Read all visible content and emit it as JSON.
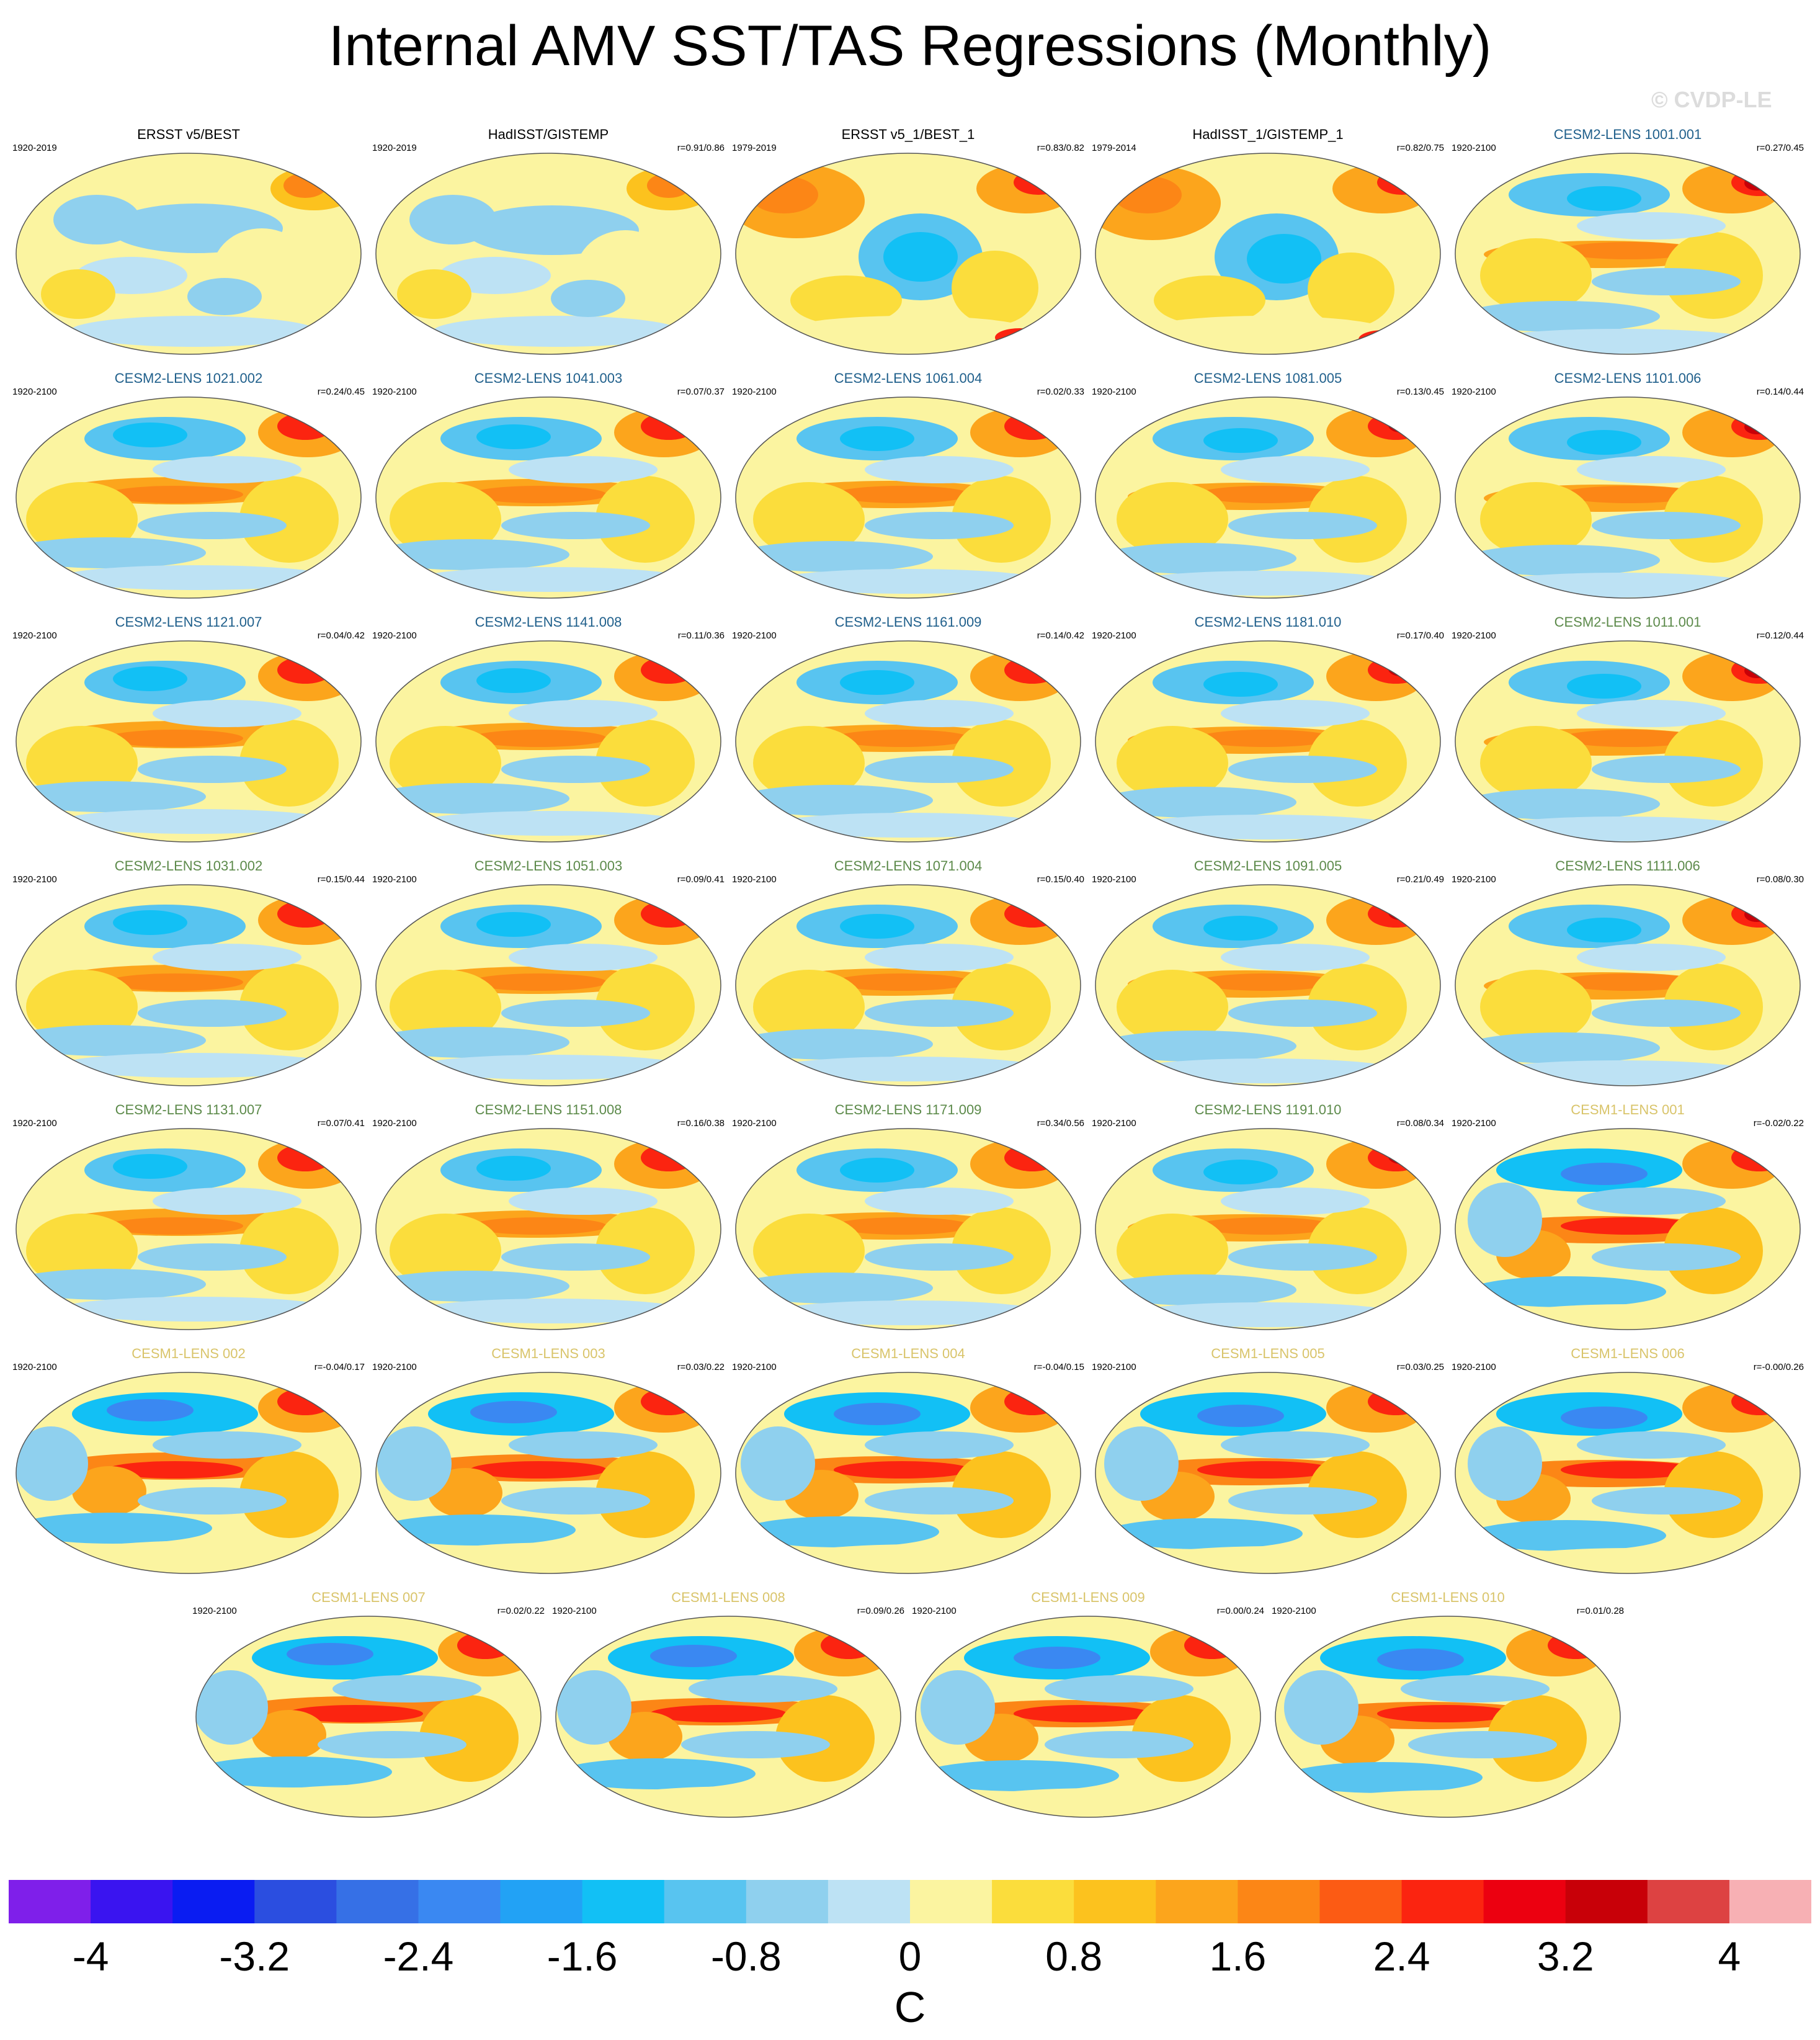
{
  "title": "Internal AMV SST/TAS Regressions (Monthly)",
  "watermark": "© CVDP-LE",
  "colors": {
    "obs_name": "#000000",
    "cesm2_a": "#1f5f8b",
    "cesm2_b": "#5c8a4a",
    "cesm1": "#d9c46a"
  },
  "panels": [
    {
      "name": "ERSST v5/BEST",
      "period": "1920-2019",
      "corr": "",
      "group": "obs",
      "pattern": 0
    },
    {
      "name": "HadISST/GISTEMP",
      "period": "1920-2019",
      "corr": "r=0.91/0.86",
      "group": "obs",
      "pattern": 0
    },
    {
      "name": "ERSST v5_1/BEST_1",
      "period": "1979-2019",
      "corr": "r=0.83/0.82",
      "group": "obs",
      "pattern": 1
    },
    {
      "name": "HadISST_1/GISTEMP_1",
      "period": "1979-2014",
      "corr": "r=0.82/0.75",
      "group": "obs",
      "pattern": 1
    },
    {
      "name": "CESM2-LENS 1001.001",
      "period": "1920-2100",
      "corr": "r=0.27/0.45",
      "group": "cesm2_a",
      "pattern": 2
    },
    {
      "name": "CESM2-LENS 1021.002",
      "period": "1920-2100",
      "corr": "r=0.24/0.45",
      "group": "cesm2_a",
      "pattern": 2
    },
    {
      "name": "CESM2-LENS 1041.003",
      "period": "1920-2100",
      "corr": "r=0.07/0.37",
      "group": "cesm2_a",
      "pattern": 2
    },
    {
      "name": "CESM2-LENS 1061.004",
      "period": "1920-2100",
      "corr": "r=0.02/0.33",
      "group": "cesm2_a",
      "pattern": 2
    },
    {
      "name": "CESM2-LENS 1081.005",
      "period": "1920-2100",
      "corr": "r=0.13/0.45",
      "group": "cesm2_a",
      "pattern": 2
    },
    {
      "name": "CESM2-LENS 1101.006",
      "period": "1920-2100",
      "corr": "r=0.14/0.44",
      "group": "cesm2_a",
      "pattern": 2
    },
    {
      "name": "CESM2-LENS 1121.007",
      "period": "1920-2100",
      "corr": "r=0.04/0.42",
      "group": "cesm2_a",
      "pattern": 2
    },
    {
      "name": "CESM2-LENS 1141.008",
      "period": "1920-2100",
      "corr": "r=0.11/0.36",
      "group": "cesm2_a",
      "pattern": 2
    },
    {
      "name": "CESM2-LENS 1161.009",
      "period": "1920-2100",
      "corr": "r=0.14/0.42",
      "group": "cesm2_a",
      "pattern": 2
    },
    {
      "name": "CESM2-LENS 1181.010",
      "period": "1920-2100",
      "corr": "r=0.17/0.40",
      "group": "cesm2_a",
      "pattern": 2
    },
    {
      "name": "CESM2-LENS 1011.001",
      "period": "1920-2100",
      "corr": "r=0.12/0.44",
      "group": "cesm2_b",
      "pattern": 2
    },
    {
      "name": "CESM2-LENS 1031.002",
      "period": "1920-2100",
      "corr": "r=0.15/0.44",
      "group": "cesm2_b",
      "pattern": 2
    },
    {
      "name": "CESM2-LENS 1051.003",
      "period": "1920-2100",
      "corr": "r=0.09/0.41",
      "group": "cesm2_b",
      "pattern": 2
    },
    {
      "name": "CESM2-LENS 1071.004",
      "period": "1920-2100",
      "corr": "r=0.15/0.40",
      "group": "cesm2_b",
      "pattern": 2
    },
    {
      "name": "CESM2-LENS 1091.005",
      "period": "1920-2100",
      "corr": "r=0.21/0.49",
      "group": "cesm2_b",
      "pattern": 2
    },
    {
      "name": "CESM2-LENS 1111.006",
      "period": "1920-2100",
      "corr": "r=0.08/0.30",
      "group": "cesm2_b",
      "pattern": 2
    },
    {
      "name": "CESM2-LENS 1131.007",
      "period": "1920-2100",
      "corr": "r=0.07/0.41",
      "group": "cesm2_b",
      "pattern": 2
    },
    {
      "name": "CESM2-LENS 1151.008",
      "period": "1920-2100",
      "corr": "r=0.16/0.38",
      "group": "cesm2_b",
      "pattern": 2
    },
    {
      "name": "CESM2-LENS 1171.009",
      "period": "1920-2100",
      "corr": "r=0.34/0.56",
      "group": "cesm2_b",
      "pattern": 2
    },
    {
      "name": "CESM2-LENS 1191.010",
      "period": "1920-2100",
      "corr": "r=0.08/0.34",
      "group": "cesm2_b",
      "pattern": 2
    },
    {
      "name": "CESM1-LENS 001",
      "period": "1920-2100",
      "corr": "r=-0.02/0.22",
      "group": "cesm1",
      "pattern": 3
    },
    {
      "name": "CESM1-LENS 002",
      "period": "1920-2100",
      "corr": "r=-0.04/0.17",
      "group": "cesm1",
      "pattern": 3
    },
    {
      "name": "CESM1-LENS 003",
      "period": "1920-2100",
      "corr": "r=0.03/0.22",
      "group": "cesm1",
      "pattern": 3
    },
    {
      "name": "CESM1-LENS 004",
      "period": "1920-2100",
      "corr": "r=-0.04/0.15",
      "group": "cesm1",
      "pattern": 3
    },
    {
      "name": "CESM1-LENS 005",
      "period": "1920-2100",
      "corr": "r=0.03/0.25",
      "group": "cesm1",
      "pattern": 3
    },
    {
      "name": "CESM1-LENS 006",
      "period": "1920-2100",
      "corr": "r=-0.00/0.26",
      "group": "cesm1",
      "pattern": 3
    },
    {
      "name": "CESM1-LENS 007",
      "period": "1920-2100",
      "corr": "r=0.02/0.22",
      "group": "cesm1",
      "pattern": 3
    },
    {
      "name": "CESM1-LENS 008",
      "period": "1920-2100",
      "corr": "r=0.09/0.26",
      "group": "cesm1",
      "pattern": 3
    },
    {
      "name": "CESM1-LENS 009",
      "period": "1920-2100",
      "corr": "r=0.00/0.24",
      "group": "cesm1",
      "pattern": 3
    },
    {
      "name": "CESM1-LENS 010",
      "period": "1920-2100",
      "corr": "r=0.01/0.28",
      "group": "cesm1",
      "pattern": 3
    }
  ],
  "colorbar": {
    "colors": [
      "#7f1fea",
      "#3a14f0",
      "#0a1cf2",
      "#2b4ee0",
      "#3670e6",
      "#3a88f2",
      "#22a2f5",
      "#12c0f5",
      "#58c4f0",
      "#8fd0ee",
      "#bde2f4",
      "#fbf4a0",
      "#fbdd3c",
      "#fcc21e",
      "#fca51c",
      "#fc8616",
      "#fc5b14",
      "#fb2410",
      "#ec0010",
      "#c80008",
      "#dd4242",
      "#f7b0b4"
    ],
    "tick_labels": [
      "-4",
      "-3.2",
      "-2.4",
      "-1.6",
      "-0.8",
      "0",
      "0.8",
      "1.6",
      "2.4",
      "3.2",
      "4"
    ],
    "units": "C"
  }
}
